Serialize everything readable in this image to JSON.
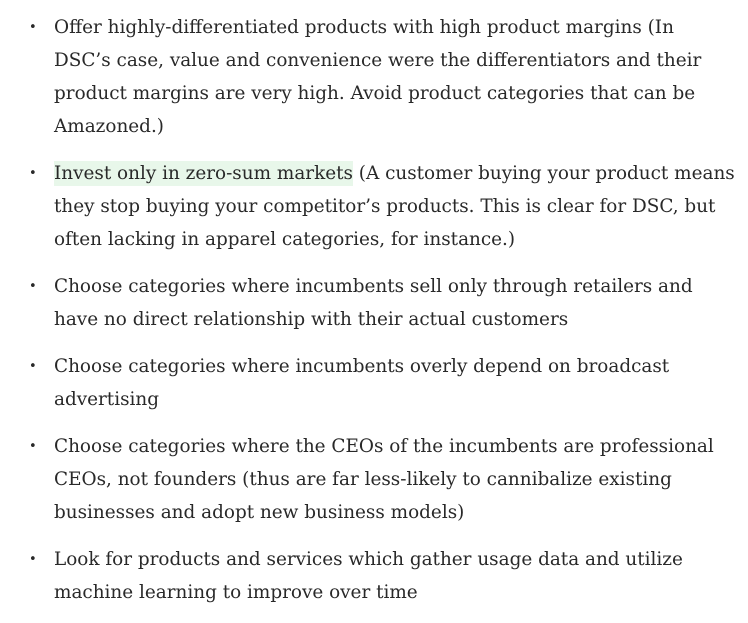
{
  "bullets": [
    {
      "text": "Offer highly-differentiated products with high product margins (In DSC’s case, value and convenience were the differentiators and their product margins are very high. Avoid product categories that can be Amazoned.)"
    },
    {
      "highlight": "Invest only in zero-sum markets",
      "text": " (A customer buying your product means they stop buying your competitor’s products. This is clear for DSC, but often lacking in apparel categories, for instance.)"
    },
    {
      "text": "Choose categories where incumbents sell only through retailers and have no direct relationship with their actual customers"
    },
    {
      "text": "Choose categories where incumbents overly depend on broadcast advertising"
    },
    {
      "text": "Choose categories where the CEOs of the incumbents are professional CEOs, not founders (thus are far less-likely to cannibalize existing businesses and adopt new business models)"
    },
    {
      "text": "Look for products and services which gather usage data and utilize machine learning to improve over time"
    }
  ],
  "bullet_glyph": "•",
  "colors": {
    "text": "#292929",
    "highlight": "#e8f7ea",
    "background": "#ffffff"
  }
}
